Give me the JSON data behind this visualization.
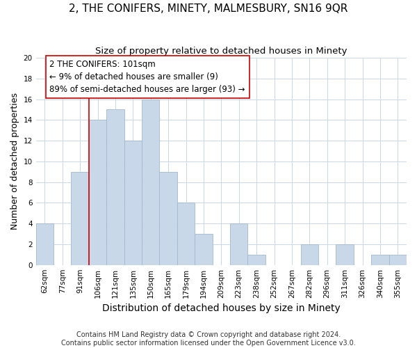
{
  "title": "2, THE CONIFERS, MINETY, MALMESBURY, SN16 9QR",
  "subtitle": "Size of property relative to detached houses in Minety",
  "xlabel": "Distribution of detached houses by size in Minety",
  "ylabel": "Number of detached properties",
  "bar_labels": [
    "62sqm",
    "77sqm",
    "91sqm",
    "106sqm",
    "121sqm",
    "135sqm",
    "150sqm",
    "165sqm",
    "179sqm",
    "194sqm",
    "209sqm",
    "223sqm",
    "238sqm",
    "252sqm",
    "267sqm",
    "282sqm",
    "296sqm",
    "311sqm",
    "326sqm",
    "340sqm",
    "355sqm"
  ],
  "bar_values": [
    4,
    0,
    9,
    14,
    15,
    12,
    16,
    9,
    6,
    3,
    0,
    4,
    1,
    0,
    0,
    2,
    0,
    2,
    0,
    1,
    1
  ],
  "bar_color": "#c8d8e8",
  "bar_edge_color": "#a0b8d0",
  "vline_x": 2.5,
  "vline_color": "#cc0000",
  "annotation_text": "2 THE CONIFERS: 101sqm\n← 9% of detached houses are smaller (9)\n89% of semi-detached houses are larger (93) →",
  "annotation_box_color": "#ffffff",
  "annotation_box_edge": "#cc0000",
  "ylim": [
    0,
    20
  ],
  "yticks": [
    0,
    2,
    4,
    6,
    8,
    10,
    12,
    14,
    16,
    18,
    20
  ],
  "footnote": "Contains HM Land Registry data © Crown copyright and database right 2024.\nContains public sector information licensed under the Open Government Licence v3.0.",
  "title_fontsize": 11,
  "subtitle_fontsize": 9.5,
  "xlabel_fontsize": 10,
  "ylabel_fontsize": 9,
  "tick_fontsize": 7.5,
  "annot_fontsize": 8.5,
  "footnote_fontsize": 7
}
